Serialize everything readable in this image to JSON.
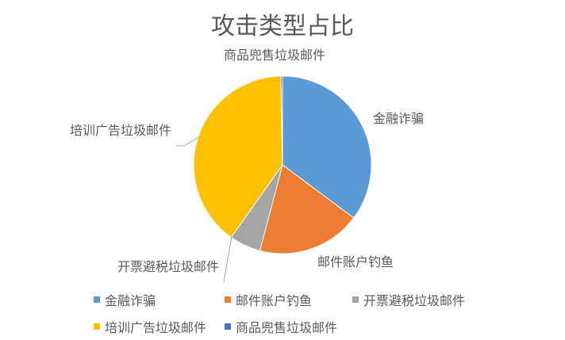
{
  "chart_data": {
    "type": "pie",
    "title": "攻击类型占比",
    "categories": [
      "金融诈骗",
      "邮件账户钓鱼",
      "开票避税垃圾邮件",
      "培训广告垃圾邮件",
      "商品兜售垃圾邮件"
    ],
    "values": [
      35.2,
      18.9,
      5.7,
      39.9,
      0.3
    ],
    "colors": [
      "#5B9BD5",
      "#ED7D31",
      "#A5A5A5",
      "#FFC000",
      "#4472C4"
    ],
    "legend": "bottom"
  }
}
